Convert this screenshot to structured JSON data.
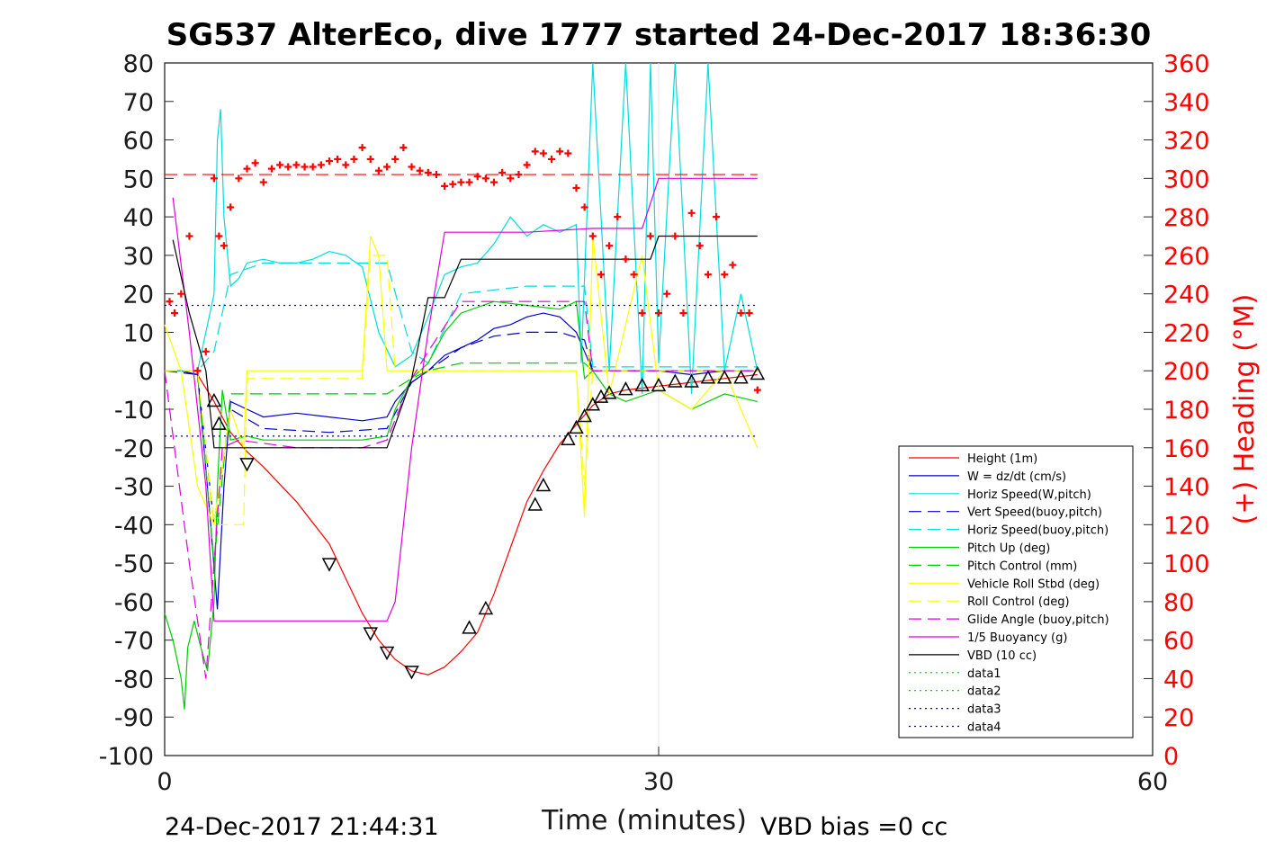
{
  "chart_data": {
    "type": "line",
    "title": "SG537 AlterEco, dive 1777 started 24-Dec-2017 18:36:30",
    "xlabel": "Time (minutes)",
    "ylabel": "",
    "ylabel_right": "(+) Heading (°M)",
    "xlim": [
      0,
      60
    ],
    "ylim": [
      -100,
      80
    ],
    "ylim_right": [
      0,
      360
    ],
    "xticks": [
      "0",
      "30",
      "60"
    ],
    "yticks": [
      "80",
      "70",
      "60",
      "50",
      "40",
      "30",
      "20",
      "10",
      "0",
      "-10",
      "-20",
      "-30",
      "-40",
      "-50",
      "-60",
      "-70",
      "-80",
      "-90",
      "-100"
    ],
    "yticks_right": [
      "360",
      "340",
      "320",
      "300",
      "280",
      "260",
      "240",
      "220",
      "200",
      "180",
      "160",
      "140",
      "120",
      "100",
      "80",
      "60",
      "40",
      "20",
      "0"
    ],
    "grid": "x-only",
    "legend_position": "lower-right",
    "footer_left": "24-Dec-2017 21:44:31",
    "footer_right": "VBD bias =0 cc",
    "series": [
      {
        "name": "Height (1m)",
        "color": "#ff0000",
        "style": "solid",
        "x": [
          0,
          1,
          2,
          3,
          4,
          5,
          6,
          8,
          10,
          11,
          12,
          13,
          14,
          15,
          16,
          17,
          18,
          19,
          20,
          21,
          22,
          23,
          24,
          25,
          26,
          27,
          28,
          30,
          32,
          34,
          36
        ],
        "y": [
          0,
          0,
          -1,
          -8,
          -16,
          -21,
          -25,
          -34,
          -45,
          -54,
          -63,
          -70,
          -75,
          -78,
          -79,
          -77,
          -73,
          -68,
          -58,
          -46,
          -34,
          -26,
          -19,
          -14,
          -9,
          -6,
          -5,
          -4,
          -3,
          -2,
          -1
        ]
      },
      {
        "name": "W = dz/dt (cm/s)",
        "color": "#0000cc",
        "style": "solid",
        "x": [
          0,
          1,
          2,
          2.8,
          3.2,
          3.6,
          4,
          5,
          6,
          8,
          10,
          12,
          13.5,
          14,
          15,
          16,
          17,
          18,
          19,
          20,
          21,
          22,
          23,
          24,
          25,
          25.5,
          26,
          28,
          30,
          32,
          34,
          36
        ],
        "y": [
          0,
          0,
          -1,
          -40,
          -62,
          -30,
          -8,
          -10,
          -12,
          -11,
          -12,
          -13,
          -12,
          -8,
          -3,
          0,
          4,
          6,
          8,
          11,
          12,
          14,
          15,
          14,
          10,
          5,
          0,
          0,
          0,
          -1,
          0,
          0
        ]
      },
      {
        "name": "Horiz Speed(W,pitch)",
        "color": "#00dddd",
        "style": "solid",
        "x": [
          0,
          1,
          2,
          3,
          3.2,
          3.4,
          3.6,
          4,
          4.5,
          5,
          6,
          7,
          8,
          9,
          10,
          11,
          12,
          13,
          14,
          15,
          16,
          17,
          18,
          19,
          20,
          21,
          22,
          23,
          24,
          25,
          25.3,
          26,
          27,
          28,
          29,
          29.5,
          30,
          31,
          32,
          33,
          34,
          35,
          36
        ],
        "y": [
          0,
          0,
          0,
          20,
          60,
          68,
          40,
          22,
          24,
          28,
          29,
          28,
          28,
          29,
          31,
          30,
          27,
          10,
          1,
          4,
          14,
          25,
          27,
          28,
          33,
          40,
          35,
          38,
          36,
          38,
          2,
          80,
          0,
          80,
          -6,
          80,
          2,
          80,
          -6,
          80,
          0,
          20,
          0
        ]
      },
      {
        "name": "Vert Speed(buoy,pitch)",
        "color": "#0000cc",
        "style": "dashed",
        "x": [
          0,
          2,
          3,
          4,
          6,
          10,
          13.5,
          15,
          16,
          18,
          20,
          22,
          24,
          25.5,
          26,
          30,
          36
        ],
        "y": [
          0,
          -1,
          -40,
          -10,
          -15,
          -16,
          -15,
          -3,
          0,
          6,
          9,
          10,
          10,
          8,
          0,
          0,
          0
        ]
      },
      {
        "name": "Horiz Speed(buoy,pitch)",
        "color": "#00dddd",
        "style": "dashed",
        "x": [
          0,
          2,
          3,
          4,
          6,
          10,
          13.5,
          15,
          16,
          18,
          22,
          25.5,
          26,
          30,
          36
        ],
        "y": [
          0,
          0,
          5,
          25,
          28,
          28,
          28,
          5,
          2,
          20,
          22,
          22,
          1,
          1,
          1
        ]
      },
      {
        "name": "Pitch Up (deg)",
        "color": "#00cc00",
        "style": "solid",
        "x": [
          0,
          0.5,
          1,
          1.2,
          1.4,
          1.8,
          2.2,
          2.6,
          3,
          3.2,
          3.5,
          4,
          5,
          6,
          8,
          10,
          12,
          13.5,
          14,
          15,
          16,
          17,
          18,
          20,
          22,
          24,
          25,
          25.5,
          26,
          27,
          28,
          30,
          32,
          34,
          36
        ],
        "y": [
          -63,
          -70,
          -80,
          -88,
          -72,
          -65,
          -72,
          -78,
          -60,
          -30,
          -5,
          -18,
          -17,
          -18,
          -18,
          -18,
          -18,
          -17,
          -10,
          -2,
          2,
          10,
          15,
          18,
          17,
          16,
          18,
          -2,
          0,
          -6,
          -8,
          -5,
          -10,
          -6,
          -8
        ]
      },
      {
        "name": "Pitch Control (mm)",
        "color": "#00cc00",
        "style": "dashed",
        "x": [
          0,
          2,
          3,
          4,
          10,
          13.5,
          15,
          16,
          18,
          22,
          25.5,
          26,
          30,
          36
        ],
        "y": [
          0,
          0,
          -50,
          -6,
          -6,
          -6,
          -2,
          0,
          2,
          2,
          2,
          0,
          0,
          0
        ]
      },
      {
        "name": "Vehicle Roll Stbd (deg)",
        "color": "#ffff00",
        "style": "solid",
        "x": [
          0,
          1,
          2,
          3,
          4,
          4.8,
          5,
          8,
          10,
          11,
          12,
          12.5,
          13,
          13.5,
          14,
          15,
          18,
          20,
          22,
          24,
          25,
          25.5,
          26,
          27,
          28,
          29,
          30,
          32,
          34,
          36
        ],
        "y": [
          12,
          0,
          -30,
          -40,
          -10,
          -20,
          0,
          0,
          0,
          0,
          0,
          35,
          30,
          0,
          0,
          0,
          0,
          0,
          0,
          0,
          0,
          -38,
          35,
          -6,
          12,
          30,
          -5,
          -10,
          0,
          -20
        ]
      },
      {
        "name": "Roll Control (deg)",
        "color": "#ffff00",
        "style": "dashed",
        "x": [
          0,
          2,
          3,
          4.8,
          5,
          12,
          12.5,
          13.5,
          14,
          25,
          25.5,
          26,
          36
        ],
        "y": [
          0,
          0,
          -40,
          -40,
          -2,
          -2,
          30,
          30,
          0,
          0,
          -30,
          0,
          0
        ]
      },
      {
        "name": "Glide Angle (buoy,pitch)",
        "color": "#dd00dd",
        "style": "dashed",
        "x": [
          0,
          1.5,
          2.5,
          3.5,
          4.5,
          8,
          12,
          13.5,
          15,
          16,
          18,
          22,
          25.5,
          26,
          36
        ],
        "y": [
          0,
          -50,
          -80,
          -20,
          -18,
          -20,
          -20,
          -18,
          -2,
          5,
          18,
          18,
          18,
          0,
          0
        ]
      },
      {
        "name": "1/5 Buoyancy (g)",
        "color": "#dd00dd",
        "style": "solid",
        "x": [
          0.5,
          1.5,
          2.5,
          3,
          4,
          8,
          12,
          13.5,
          14,
          15,
          16,
          17,
          18,
          22,
          26,
          29,
          30,
          36
        ],
        "y": [
          45,
          10,
          -30,
          -65,
          -65,
          -65,
          -65,
          -65,
          -60,
          -20,
          10,
          36,
          36,
          36,
          37,
          37,
          50,
          50
        ]
      },
      {
        "name": "VBD (10 cc)",
        "color": "#000000",
        "style": "solid",
        "x": [
          0.5,
          1.5,
          2.5,
          3,
          4,
          10,
          13.5,
          15,
          16,
          17,
          18,
          20,
          22,
          25,
          29.5,
          30,
          36
        ],
        "y": [
          34,
          15,
          0,
          -20,
          -20,
          -20,
          -20,
          -2,
          19,
          19,
          29,
          29,
          29,
          29,
          29,
          35,
          35
        ]
      },
      {
        "name": "data1",
        "color": "#00cc00",
        "style": "dotted",
        "x": [],
        "y": []
      },
      {
        "name": "data2",
        "color": "#00cc00",
        "style": "dotted",
        "x": [],
        "y": []
      },
      {
        "name": "data3",
        "color": "#0000aa",
        "style": "dotted",
        "x": [
          0,
          36
        ],
        "y": [
          17,
          17
        ]
      },
      {
        "name": "data4",
        "color": "#0000aa",
        "style": "dotted",
        "x": [
          0,
          36
        ],
        "y": [
          -17,
          -17
        ]
      }
    ],
    "heading": {
      "marker": "+",
      "color": "#ff0000",
      "reference_line": 302,
      "x": [
        0.3,
        0.6,
        1,
        1.5,
        2,
        2.5,
        3,
        3.3,
        3.6,
        4,
        4.5,
        5,
        5.5,
        6,
        6.5,
        7,
        7.5,
        8,
        8.5,
        9,
        9.5,
        10,
        10.5,
        11,
        11.5,
        12,
        12.5,
        13,
        13.5,
        14,
        14.5,
        15,
        15.5,
        16,
        16.5,
        17,
        17.5,
        18,
        18.5,
        19,
        19.5,
        20,
        20.5,
        21,
        21.5,
        22,
        22.5,
        23,
        23.5,
        24,
        24.5,
        25,
        25.5,
        26,
        26.5,
        27,
        27.5,
        28,
        28.5,
        29,
        29.5,
        30,
        30.5,
        31,
        31.5,
        32,
        32.5,
        33,
        33.5,
        34,
        34.5,
        35,
        35.5,
        36
      ],
      "y": [
        236,
        230,
        240,
        270,
        200,
        210,
        300,
        270,
        265,
        285,
        300,
        305,
        308,
        298,
        305,
        307,
        306,
        307,
        306,
        306,
        307,
        309,
        310,
        307,
        310,
        316,
        310,
        304,
        306,
        310,
        316,
        306,
        304,
        303,
        302,
        296,
        297,
        298,
        298,
        301,
        300,
        298,
        303,
        300,
        302,
        307,
        314,
        313,
        310,
        314,
        313,
        295,
        285,
        270,
        250,
        265,
        280,
        258,
        250,
        230,
        270,
        230,
        240,
        270,
        230,
        282,
        265,
        250,
        280,
        250,
        255,
        230,
        230,
        190
      ]
    },
    "dive_markers": {
      "descent": {
        "x": [
          5,
          10,
          12.5,
          13.5,
          15
        ],
        "y": [
          -24,
          -50,
          -68,
          -73,
          -78
        ]
      },
      "ascent": {
        "x": [
          3,
          3.3,
          18.5,
          19.5,
          22.5,
          23,
          24.5,
          25,
          25.5,
          26,
          26.5,
          27,
          28,
          29,
          30,
          31,
          32,
          33,
          34,
          35,
          36
        ],
        "y": [
          -8,
          -14,
          -67,
          -62,
          -35,
          -30,
          -18,
          -15,
          -12,
          -9,
          -7,
          -6,
          -5,
          -4,
          -4,
          -3,
          -3,
          -2,
          -2,
          -2,
          -1
        ]
      }
    }
  }
}
